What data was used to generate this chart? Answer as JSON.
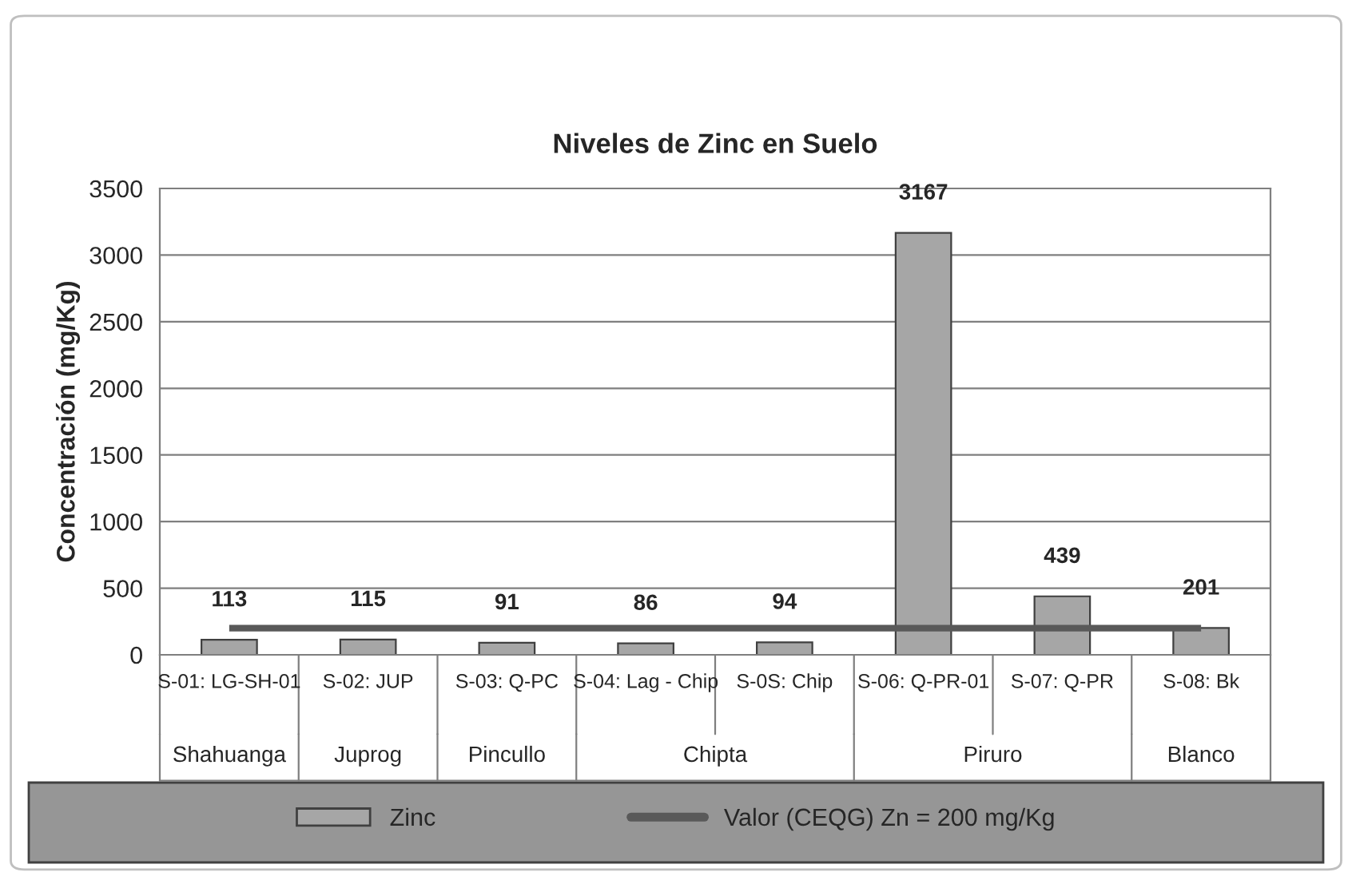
{
  "chart_data": {
    "type": "bar",
    "title": "Niveles de Zinc en Suelo",
    "ylabel": "Concentración (mg/Kg)",
    "categories": [
      "S-01: LG-SH-01",
      "S-02: JUP",
      "S-03: Q-PC",
      "S-04: Lag - Chip",
      "S-0S: Chip",
      "S-06: Q-PR-01",
      "S-07: Q-PR",
      "S-08: Bk"
    ],
    "series": [
      {
        "name": "Zinc",
        "color": "#a6a6a6",
        "values": [
          113,
          115,
          91,
          86,
          94,
          3167,
          439,
          201
        ],
        "value_labels": [
          "113",
          "115",
          "91",
          "86",
          "94",
          "3167",
          "439",
          "201"
        ]
      },
      {
        "name": "Valor (CEQG) Zn = 200 mg/Kg",
        "type": "line",
        "color": "#595959",
        "values": [
          200,
          200,
          200,
          200,
          200,
          200,
          200,
          200
        ]
      }
    ],
    "annotations": [
      "Shahuanga",
      "Juprog",
      "Pincullo",
      "Chipta",
      "Piruro",
      "Blanco"
    ],
    "ylim": [
      0,
      3500
    ],
    "yticks": [
      0,
      500,
      1000,
      1500,
      2000,
      2500,
      3000,
      3500
    ],
    "grid": "y",
    "legend": "bottom"
  }
}
